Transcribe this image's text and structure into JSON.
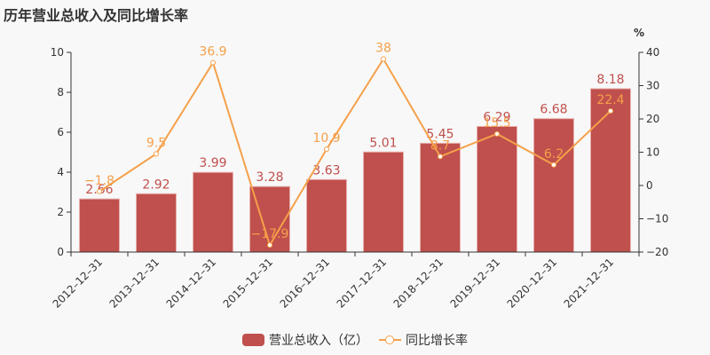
{
  "title": "历年营业总收入及同比增长率",
  "colors": {
    "bar": "#c0504d",
    "line": "#f5a04a",
    "axis": "#333333",
    "background": "#f8f8f8"
  },
  "legend": {
    "bar_label": "营业总收入（亿）",
    "line_label": "同比增长率"
  },
  "right_axis_unit": "%",
  "chart_data": {
    "type": "bar+line",
    "title": "历年营业总收入及同比增长率",
    "categories": [
      "2012-12-31",
      "2013-12-31",
      "2014-12-31",
      "2015-12-31",
      "2016-12-31",
      "2017-12-31",
      "2018-12-31",
      "2019-12-31",
      "2020-12-31",
      "2021-12-31"
    ],
    "series": [
      {
        "name": "营业总收入（亿）",
        "type": "bar",
        "axis": "left",
        "values": [
          2.66,
          2.92,
          3.99,
          3.28,
          3.63,
          5.01,
          5.45,
          6.29,
          6.68,
          8.18
        ],
        "labels": [
          "2.66",
          "2.92",
          "3.99",
          "3.28",
          "3.63",
          "5.01",
          "5.45",
          "6.29",
          "6.68",
          "8.18"
        ]
      },
      {
        "name": "同比增长率",
        "type": "line",
        "axis": "right",
        "values": [
          -1.8,
          9.5,
          36.9,
          -17.9,
          10.9,
          38,
          8.7,
          15.5,
          6.2,
          22.4
        ],
        "labels": [
          "-1.8",
          "9.5",
          "36.9",
          "-17.9",
          "10.9",
          "38",
          "8.7",
          "15.5",
          "6.2",
          "22.4"
        ]
      }
    ],
    "left_axis": {
      "min": 0,
      "max": 10,
      "ticks": [
        "0",
        "2",
        "4",
        "6",
        "8",
        "10"
      ]
    },
    "right_axis": {
      "min": -20,
      "max": 40,
      "ticks": [
        "-20",
        "-10",
        "0",
        "10",
        "20",
        "30",
        "40"
      ],
      "unit": "%"
    },
    "grid": false,
    "legend_position": "bottom"
  }
}
